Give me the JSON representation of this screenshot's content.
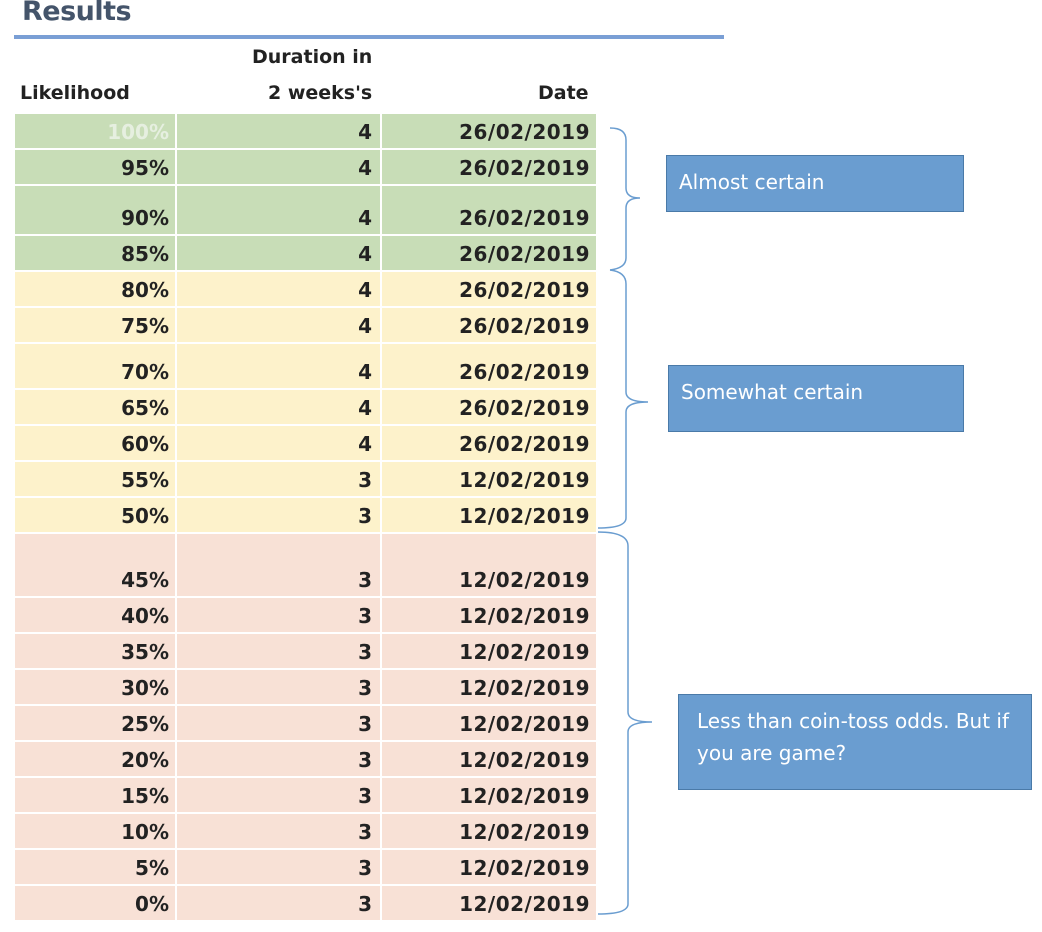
{
  "title": "Results",
  "headers": {
    "likelihood": "Likelihood",
    "duration_line1": "Duration in",
    "duration_line2": "2 weeks's",
    "date": "Date"
  },
  "rows": [
    {
      "likelihood": "100%",
      "duration": "4",
      "date": "26/02/2019",
      "group": "green"
    },
    {
      "likelihood": "95%",
      "duration": "4",
      "date": "26/02/2019",
      "group": "green"
    },
    {
      "likelihood": "90%",
      "duration": "4",
      "date": "26/02/2019",
      "group": "green"
    },
    {
      "likelihood": "85%",
      "duration": "4",
      "date": "26/02/2019",
      "group": "green"
    },
    {
      "likelihood": "80%",
      "duration": "4",
      "date": "26/02/2019",
      "group": "yellow"
    },
    {
      "likelihood": "75%",
      "duration": "4",
      "date": "26/02/2019",
      "group": "yellow"
    },
    {
      "likelihood": "70%",
      "duration": "4",
      "date": "26/02/2019",
      "group": "yellow"
    },
    {
      "likelihood": "65%",
      "duration": "4",
      "date": "26/02/2019",
      "group": "yellow"
    },
    {
      "likelihood": "60%",
      "duration": "4",
      "date": "26/02/2019",
      "group": "yellow"
    },
    {
      "likelihood": "55%",
      "duration": "3",
      "date": "12/02/2019",
      "group": "yellow"
    },
    {
      "likelihood": "50%",
      "duration": "3",
      "date": "12/02/2019",
      "group": "yellow"
    },
    {
      "likelihood": "45%",
      "duration": "3",
      "date": "12/02/2019",
      "group": "red"
    },
    {
      "likelihood": "40%",
      "duration": "3",
      "date": "12/02/2019",
      "group": "red"
    },
    {
      "likelihood": "35%",
      "duration": "3",
      "date": "12/02/2019",
      "group": "red"
    },
    {
      "likelihood": "30%",
      "duration": "3",
      "date": "12/02/2019",
      "group": "red"
    },
    {
      "likelihood": "25%",
      "duration": "3",
      "date": "12/02/2019",
      "group": "red"
    },
    {
      "likelihood": "20%",
      "duration": "3",
      "date": "12/02/2019",
      "group": "red"
    },
    {
      "likelihood": "15%",
      "duration": "3",
      "date": "12/02/2019",
      "group": "red"
    },
    {
      "likelihood": "10%",
      "duration": "3",
      "date": "12/02/2019",
      "group": "red"
    },
    {
      "likelihood": "5%",
      "duration": "3",
      "date": "12/02/2019",
      "group": "red"
    },
    {
      "likelihood": "0%",
      "duration": "3",
      "date": "12/02/2019",
      "group": "red"
    }
  ],
  "notes": {
    "almost_certain": "Almost certain",
    "somewhat_certain": "Somewhat certain",
    "less_than_coin_toss": "Less than coin-toss odds. But if you are game?"
  },
  "colors": {
    "green": "#c8ddb7",
    "yellow": "#fdf2cb",
    "red": "#f8e1d6",
    "note_box": "#6a9dd0",
    "bracket": "#6a9dd0",
    "title": "#44546a",
    "first_row_text": "#e6efe0"
  }
}
